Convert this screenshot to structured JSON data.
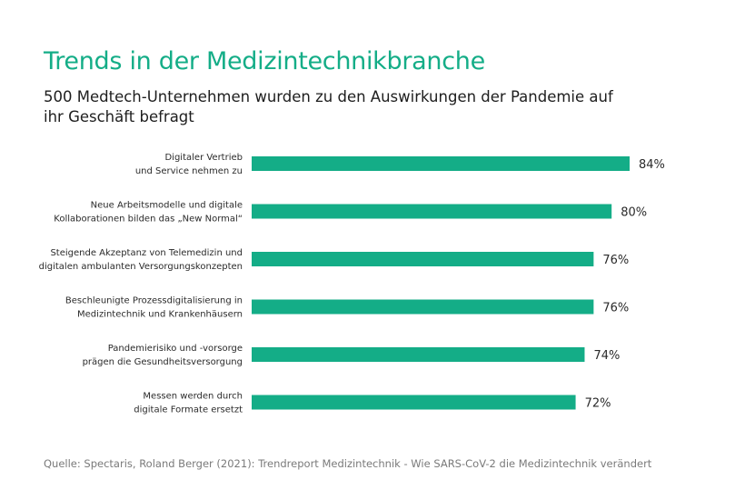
{
  "chart_data": {
    "type": "bar",
    "orientation": "horizontal",
    "title": "Trends in der Medizintechnikbranche",
    "subtitle": "500 Medtech-Unternehmen wurden zu den Auswirkungen der Pandemie auf ihr Geschäft befragt",
    "categories": [
      [
        "Digitaler Vertrieb",
        "und Service nehmen zu"
      ],
      [
        "Neue Arbeitsmodelle und digitale",
        "Kollaborationen bilden das „New Normal“"
      ],
      [
        "Steigende Akzeptanz von Telemedizin und",
        "digitalen ambulanten Versorgungskonzepten"
      ],
      [
        "Beschleunigte Prozessdigitalisierung in",
        "Medizintechnik und Krankenhäusern"
      ],
      [
        "Pandemierisiko und -vorsorge",
        "prägen die Gesundheitsversorgung"
      ],
      [
        "Messen werden durch",
        "digitale Formate ersetzt"
      ]
    ],
    "values": [
      84,
      80,
      76,
      76,
      74,
      72
    ],
    "value_labels": [
      "84%",
      "80%",
      "76%",
      "76%",
      "74%",
      "72%"
    ],
    "unit": "%",
    "xlim": [
      0,
      84
    ],
    "grid": false,
    "legend": "none",
    "bar_color": "#14ad87"
  },
  "source": "Quelle: Spectaris, Roland Berger (2021): Trendreport Medizintechnik - Wie SARS-CoV-2 die Medizintechnik verändert"
}
